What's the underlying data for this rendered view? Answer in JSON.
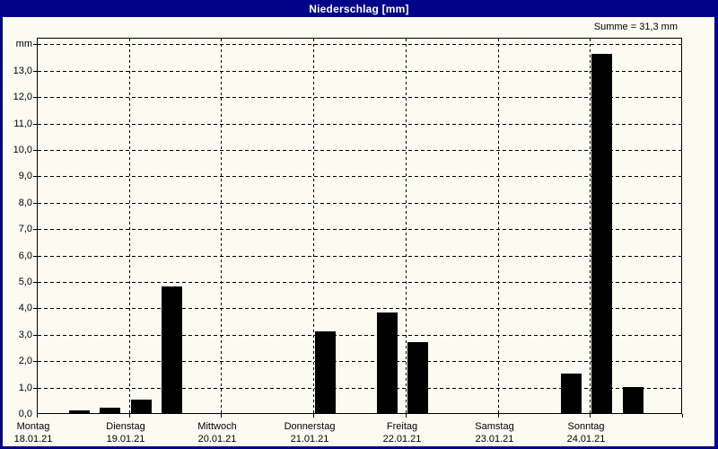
{
  "window": {
    "title": "Niederschlag [mm]",
    "summe": "Summe = 31,3 mm"
  },
  "colors": {
    "header_bg": "#000287",
    "header_text": "#ffffff",
    "page_bg": "#fbfbf2",
    "bar": "#000000",
    "grid": "#000000"
  },
  "chart_data": {
    "type": "bar",
    "title": "Niederschlag [mm]",
    "ylabel": "mm",
    "ylim": [
      0,
      14.25
    ],
    "grid": "dashed",
    "sum_total_mm": 31.3,
    "sum_label": "Summe = 31,3 mm",
    "y_ticks": [
      {
        "v": 14,
        "label": "mm"
      },
      {
        "v": 13,
        "label": "13,0"
      },
      {
        "v": 12,
        "label": "12,0"
      },
      {
        "v": 11,
        "label": "11,0"
      },
      {
        "v": 10,
        "label": "10,0"
      },
      {
        "v": 9,
        "label": "9,0"
      },
      {
        "v": 8,
        "label": "8,0"
      },
      {
        "v": 7,
        "label": "7,0"
      },
      {
        "v": 6,
        "label": "6,0"
      },
      {
        "v": 5,
        "label": "5,0"
      },
      {
        "v": 4,
        "label": "4,0"
      },
      {
        "v": 3,
        "label": "3,0"
      },
      {
        "v": 2,
        "label": "2,0"
      },
      {
        "v": 1,
        "label": "1,0"
      },
      {
        "v": 0,
        "label": "0,0"
      }
    ],
    "days": [
      {
        "name": "Montag",
        "date": "18.01.21"
      },
      {
        "name": "Dienstag",
        "date": "19.01.21"
      },
      {
        "name": "Mittwoch",
        "date": "20.01.21"
      },
      {
        "name": "Donnerstag",
        "date": "21.01.21"
      },
      {
        "name": "Freitag",
        "date": "22.01.21"
      },
      {
        "name": "Samstag",
        "date": "23.01.21"
      },
      {
        "name": "Sonntag",
        "date": "24.01.21"
      }
    ],
    "slots_per_day": 3,
    "bars": [
      {
        "day": "Montag",
        "day_index": 0,
        "slot": 1,
        "value": 0.1
      },
      {
        "day": "Montag",
        "day_index": 0,
        "slot": 2,
        "value": 0.2
      },
      {
        "day": "Dienstag",
        "day_index": 1,
        "slot": 0,
        "value": 0.5
      },
      {
        "day": "Dienstag",
        "day_index": 1,
        "slot": 1,
        "value": 4.8
      },
      {
        "day": "Donnerstag",
        "day_index": 3,
        "slot": 0,
        "value": 3.1
      },
      {
        "day": "Donnerstag",
        "day_index": 3,
        "slot": 2,
        "value": 3.8
      },
      {
        "day": "Freitag",
        "day_index": 4,
        "slot": 0,
        "value": 2.7
      },
      {
        "day": "Samstag",
        "day_index": 5,
        "slot": 2,
        "value": 1.5
      },
      {
        "day": "Sonntag",
        "day_index": 6,
        "slot": 0,
        "value": 13.6
      },
      {
        "day": "Sonntag",
        "day_index": 6,
        "slot": 1,
        "value": 1.0
      }
    ]
  }
}
